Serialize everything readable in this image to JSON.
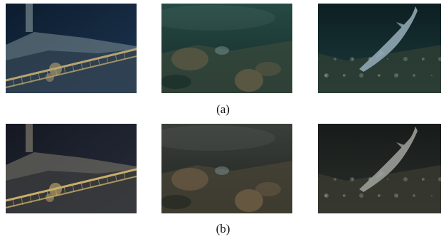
{
  "figure": {
    "rows": [
      {
        "caption": "(a)",
        "panels": [
          {
            "icon": "shipwreck-bow-railing-photo",
            "palette": {
              "water": "#1f3a57",
              "deep": "#0e1f33",
              "hull": "#9fb4b6",
              "rail": "#c8b27a"
            }
          },
          {
            "icon": "seafloor-rocks-photo",
            "palette": {
              "water": "#264a44",
              "deep": "#152a28",
              "rock": "#5e5a44",
              "silt": "#3a4a3c"
            }
          },
          {
            "icon": "shark-swimming-photo",
            "palette": {
              "water": "#1c3a3a",
              "deep": "#0d1f22",
              "shark": "#8fa7b3",
              "floor": "#2f3f34"
            }
          }
        ]
      },
      {
        "caption": "(b)",
        "panels": [
          {
            "icon": "shipwreck-bow-railing-photo",
            "palette": {
              "water": "#2b3140",
              "deep": "#171b26",
              "hull": "#a59e88",
              "rail": "#d9bd73"
            }
          },
          {
            "icon": "seafloor-rocks-photo",
            "palette": {
              "water": "#3a3f3a",
              "deep": "#202420",
              "rock": "#6a5a44",
              "silt": "#4a4636"
            }
          },
          {
            "icon": "shark-swimming-photo",
            "palette": {
              "water": "#2a2f2c",
              "deep": "#171b19",
              "shark": "#9a9c97",
              "floor": "#3a3a30"
            }
          }
        ]
      }
    ]
  }
}
